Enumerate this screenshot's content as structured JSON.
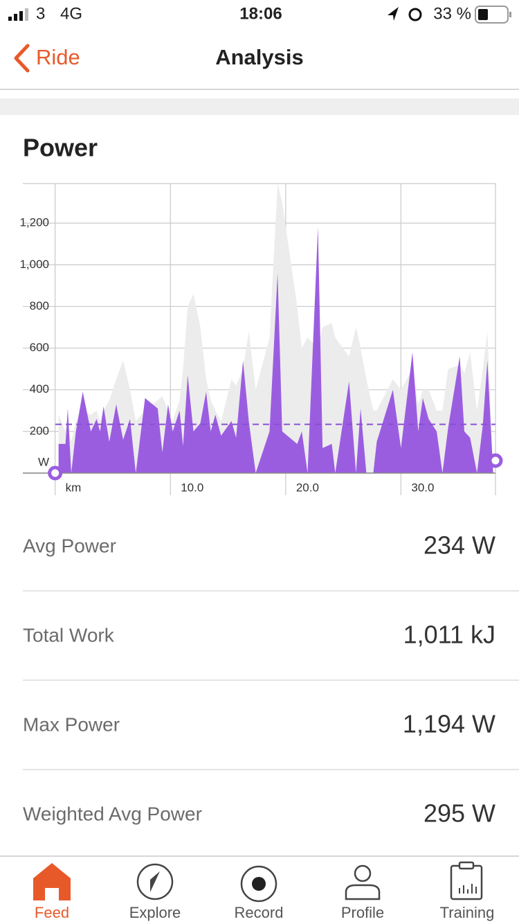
{
  "status_bar": {
    "carrier": "3",
    "network": "4G",
    "time": "18:06",
    "battery": "33 %"
  },
  "nav": {
    "back": "Ride",
    "title": "Analysis"
  },
  "chart_data": {
    "type": "area",
    "title": "Power",
    "xlim": [
      -2.8,
      38.2
    ],
    "xticks": [
      {
        "value": 0,
        "label": "km"
      },
      {
        "value": 10,
        "label": "10.0"
      },
      {
        "value": 20,
        "label": "20.0"
      },
      {
        "value": 30,
        "label": "30.0"
      }
    ],
    "ylim": [
      0,
      1390
    ],
    "yticks": [
      {
        "value": 0,
        "label": "W"
      },
      200,
      400,
      600,
      800,
      {
        "value": 1000,
        "label": "1,000"
      },
      {
        "value": 1200,
        "label": "1,200"
      }
    ],
    "grid": true,
    "x": [
      0.3,
      0.9,
      1.1,
      1.4,
      1.8,
      2.4,
      3.1,
      3.6,
      3.9,
      4.2,
      4.7,
      5.3,
      5.9,
      6.5,
      7.0,
      7.8,
      8.9,
      9.3,
      9.8,
      10.2,
      10.8,
      11.1,
      11.5,
      12.0,
      12.6,
      13.1,
      13.5,
      13.9,
      14.4,
      15.3,
      15.7,
      16.3,
      16.8,
      17.4,
      18.6,
      19.3,
      19.7,
      21.0,
      21.4,
      21.9,
      22.8,
      23.2,
      24.0,
      24.3,
      25.5,
      26.1,
      26.5,
      27.0,
      27.6,
      27.9,
      29.3,
      30.0,
      31.0,
      31.5,
      31.9,
      32.4,
      33.1,
      33.6,
      34.1,
      35.1,
      35.5,
      36.0,
      36.6,
      37.1,
      37.5,
      38.0
    ],
    "series": [
      {
        "color": "#ececec",
        "values": [
          280,
          200,
          250,
          150,
          250,
          300,
          280,
          300,
          250,
          300,
          350,
          450,
          540,
          400,
          250,
          300,
          350,
          370,
          300,
          250,
          350,
          500,
          800,
          860,
          700,
          450,
          350,
          300,
          250,
          450,
          420,
          500,
          680,
          400,
          650,
          1390,
          1300,
          800,
          600,
          650,
          600,
          700,
          720,
          650,
          560,
          700,
          600,
          450,
          300,
          300,
          450,
          400,
          500,
          330,
          400,
          400,
          300,
          300,
          500,
          520,
          480,
          580,
          300,
          500,
          680,
          0
        ]
      },
      {
        "color": "#9b5de0",
        "values": [
          140,
          140,
          310,
          0,
          200,
          390,
          200,
          260,
          200,
          320,
          150,
          330,
          160,
          260,
          0,
          360,
          310,
          100,
          330,
          200,
          300,
          130,
          470,
          200,
          240,
          390,
          200,
          280,
          180,
          250,
          170,
          540,
          250,
          0,
          200,
          960,
          200,
          140,
          200,
          0,
          1180,
          120,
          140,
          0,
          440,
          0,
          310,
          0,
          0,
          150,
          400,
          120,
          580,
          200,
          360,
          260,
          200,
          0,
          220,
          560,
          200,
          170,
          0,
          230,
          540,
          0
        ]
      }
    ],
    "mean_line": {
      "value": 234,
      "color": "#8a4fd6"
    }
  },
  "stats": [
    {
      "label": "Avg Power",
      "value": "234 W"
    },
    {
      "label": "Total Work",
      "value": "1,011 kJ"
    },
    {
      "label": "Max Power",
      "value": "1,194 W"
    },
    {
      "label": "Weighted Avg Power",
      "value": "295 W"
    }
  ],
  "tabs": [
    "Feed",
    "Explore",
    "Record",
    "Profile",
    "Training"
  ]
}
